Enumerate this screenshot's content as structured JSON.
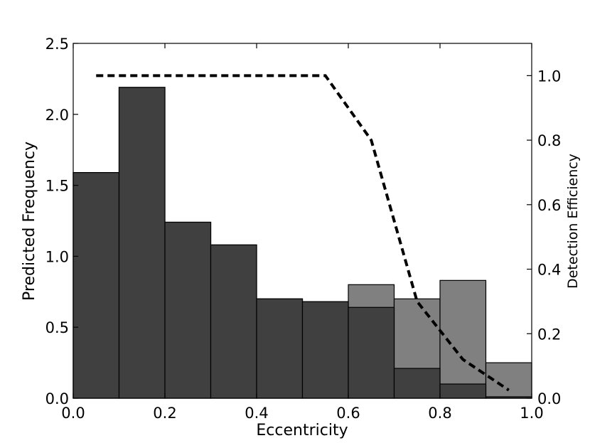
{
  "chart_data": {
    "type": "bar",
    "title": "",
    "xlabel": "Eccentricity",
    "ylabel": "Predicted Frequency",
    "y2label": "Detection Efficiency",
    "xlim": [
      0.0,
      1.0
    ],
    "ylim": [
      0.0,
      2.5
    ],
    "y2lim": [
      0.0,
      1.1
    ],
    "x_ticks": [
      "0.0",
      "0.2",
      "0.4",
      "0.6",
      "0.8",
      "1.0"
    ],
    "y_ticks": [
      "0.0",
      "0.5",
      "1.0",
      "1.5",
      "2.0",
      "2.5"
    ],
    "y2_ticks": [
      "0.0",
      "0.2",
      "0.4",
      "0.6",
      "0.8",
      "1.0"
    ],
    "bin_edges": [
      0.0,
      0.1,
      0.2,
      0.3,
      0.4,
      0.5,
      0.6,
      0.7,
      0.8,
      0.9,
      1.0
    ],
    "grid": false,
    "series": [
      {
        "type": "bar",
        "axis": "left",
        "color": "#808080",
        "values": [
          1.59,
          2.19,
          1.24,
          1.08,
          0.7,
          0.68,
          0.8,
          0.7,
          0.83,
          0.25
        ]
      },
      {
        "type": "bar",
        "axis": "left",
        "color": "#404040",
        "values": [
          1.59,
          2.19,
          1.24,
          1.08,
          0.7,
          0.68,
          0.64,
          0.21,
          0.1,
          0.01
        ]
      },
      {
        "type": "line",
        "axis": "right",
        "style": "dashed",
        "color": "#000000",
        "x": [
          0.05,
          0.15,
          0.25,
          0.35,
          0.45,
          0.55,
          0.65,
          0.75,
          0.85,
          0.95
        ],
        "y": [
          1.0,
          1.0,
          1.0,
          1.0,
          1.0,
          1.0,
          0.8,
          0.3,
          0.12,
          0.025
        ]
      }
    ]
  }
}
